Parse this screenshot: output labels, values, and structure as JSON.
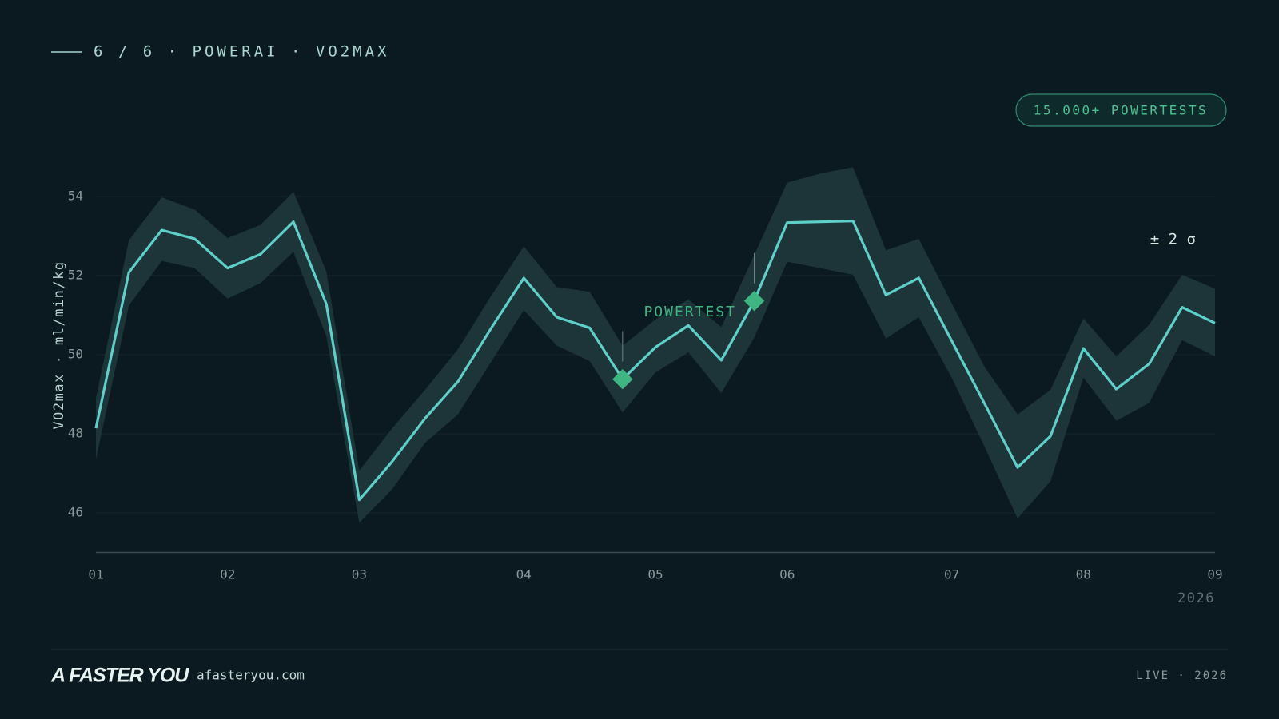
{
  "header": {
    "title": "6 / 6 · POWERAI · VO2MAX",
    "badge": "15.000+ POWERTESTS"
  },
  "footer": {
    "logo": "A FASTER YOU",
    "url": "afasteryou.com",
    "status": "LIVE · 2026"
  },
  "chart_data": {
    "type": "line",
    "y_label": "VO2max · ml/min/kg",
    "x_label": "2026",
    "x": [
      0,
      1,
      2,
      3,
      4,
      5,
      6,
      7,
      8,
      9,
      10,
      11,
      12,
      13,
      14,
      15,
      16,
      17,
      18,
      19,
      20,
      21,
      22,
      23,
      24,
      25,
      26,
      27,
      28,
      29,
      30,
      31,
      32,
      33,
      34
    ],
    "xlim": [
      0,
      34
    ],
    "xticks": [
      {
        "value": 0,
        "label": "01"
      },
      {
        "value": 4,
        "label": "02"
      },
      {
        "value": 8,
        "label": "03"
      },
      {
        "value": 13,
        "label": "04"
      },
      {
        "value": 17,
        "label": "05"
      },
      {
        "value": 21,
        "label": "06"
      },
      {
        "value": 26,
        "label": "07"
      },
      {
        "value": 30,
        "label": "08"
      },
      {
        "value": 34,
        "label": "09"
      }
    ],
    "ylim": [
      45,
      55
    ],
    "yticks": [
      46,
      48,
      50,
      52,
      54
    ],
    "grid": true,
    "series": [
      {
        "name": "VO2max",
        "color": "#5ecfc9",
        "values": [
          48.14,
          52.08,
          53.15,
          52.93,
          52.19,
          52.54,
          53.36,
          51.28,
          46.33,
          47.3,
          48.39,
          49.32,
          50.66,
          51.94,
          50.95,
          50.68,
          49.38,
          50.19,
          50.74,
          49.86,
          51.36,
          53.34,
          53.36,
          53.38,
          51.51,
          51.94,
          50.35,
          48.76,
          47.15,
          47.94,
          50.16,
          49.13,
          49.77,
          51.2,
          50.8
        ]
      }
    ],
    "band": {
      "name": "± 2 σ",
      "color": "#1d3539",
      "upper": [
        48.9,
        52.89,
        53.98,
        53.67,
        52.95,
        53.28,
        54.12,
        52.1,
        47.07,
        48.14,
        49.11,
        50.14,
        51.48,
        52.74,
        51.71,
        51.59,
        50.23,
        50.89,
        51.4,
        50.7,
        52.52,
        54.35,
        54.58,
        54.74,
        52.64,
        52.93,
        51.3,
        49.69,
        48.49,
        49.11,
        50.92,
        49.96,
        50.76,
        52.02,
        51.67
      ],
      "lower": [
        47.36,
        51.24,
        52.37,
        52.19,
        51.42,
        51.81,
        52.6,
        50.47,
        45.75,
        46.6,
        47.77,
        48.49,
        49.81,
        51.13,
        50.23,
        49.84,
        48.54,
        49.55,
        50.06,
        49.03,
        50.43,
        52.35,
        52.19,
        52.02,
        50.41,
        50.95,
        49.42,
        47.67,
        45.86,
        46.8,
        49.42,
        48.33,
        48.78,
        50.37,
        49.96
      ]
    },
    "powertest": {
      "label": "POWERTEST",
      "color": "#3fb582",
      "x": [
        16,
        20
      ]
    }
  }
}
